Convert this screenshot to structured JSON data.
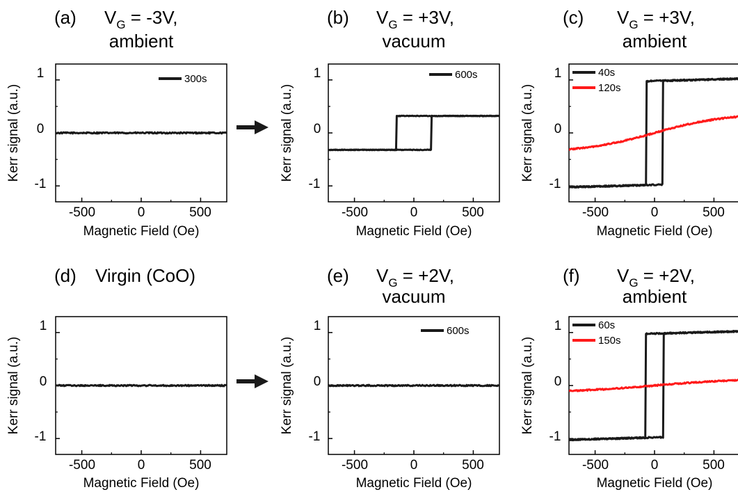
{
  "colors": {
    "black_curve": "#1a1a1a",
    "red_curve": "#ff1a1a",
    "axis": "#000000"
  },
  "arrows": [
    {
      "from": "a",
      "to": "b"
    },
    {
      "from": "d",
      "to": "e"
    }
  ],
  "chart_data": [
    {
      "id": "a",
      "type": "line",
      "title_letter": "(a)",
      "title_main": "V",
      "title_sub": "G",
      "title_rest": " = -3V,",
      "title_line2": "ambient",
      "xlabel": "Magnetic Field (Oe)",
      "ylabel": "Kerr signal (a.u.)",
      "xlim": [
        -720,
        720
      ],
      "ylim": [
        -1.3,
        1.3
      ],
      "xticks": [
        -500,
        0,
        500
      ],
      "yticks": [
        -1,
        0,
        1
      ],
      "xtick_labels": [
        "-500",
        "0",
        "500"
      ],
      "ytick_labels": [
        "-1",
        "0",
        "1"
      ],
      "legend": [
        {
          "label": "300s",
          "color": "#1a1a1a"
        }
      ],
      "series": [
        {
          "name": "300s",
          "color": "#1a1a1a",
          "kind": "flat",
          "level": 0.0,
          "noise": 0.012
        }
      ]
    },
    {
      "id": "b",
      "type": "line",
      "title_letter": "(b)",
      "title_main": "V",
      "title_sub": "G",
      "title_rest": " = +3V,",
      "title_line2": "vacuum",
      "xlabel": "Magnetic Field (Oe)",
      "ylabel": "Kerr signal (a.u.)",
      "xlim": [
        -720,
        720
      ],
      "ylim": [
        -1.3,
        1.3
      ],
      "xticks": [
        -500,
        0,
        500
      ],
      "yticks": [
        -1,
        0,
        1
      ],
      "xtick_labels": [
        "-500",
        "0",
        "500"
      ],
      "ytick_labels": [
        "-1",
        "0",
        "1"
      ],
      "legend": [
        {
          "label": "600s",
          "color": "#1a1a1a"
        }
      ],
      "series": [
        {
          "name": "600s",
          "color": "#1a1a1a",
          "kind": "loop",
          "sat": 0.32,
          "hc": 150,
          "slope": 0.0,
          "noise": 0.006
        }
      ]
    },
    {
      "id": "c",
      "type": "line",
      "title_letter": "(c)",
      "title_main": "V",
      "title_sub": "G",
      "title_rest": " = +3V,",
      "title_line2": "ambient",
      "xlabel": "Magnetic Field (Oe)",
      "ylabel": "Kerr signal (a.u.)",
      "xlim": [
        -720,
        720
      ],
      "ylim": [
        -1.3,
        1.3
      ],
      "xticks": [
        -500,
        0,
        500
      ],
      "yticks": [
        -1,
        0,
        1
      ],
      "xtick_labels": [
        "-500",
        "0",
        "500"
      ],
      "ytick_labels": [
        "-1",
        "0",
        "1"
      ],
      "legend": [
        {
          "label": "40s",
          "color": "#1a1a1a"
        },
        {
          "label": "120s",
          "color": "#ff1a1a"
        }
      ],
      "series": [
        {
          "name": "40s",
          "color": "#1a1a1a",
          "kind": "loop",
          "sat": 0.98,
          "hc": 70,
          "slope": 6e-05,
          "noise": 0.012
        },
        {
          "name": "120s",
          "color": "#ff1a1a",
          "kind": "tanh",
          "amp": 0.37,
          "scale": 600,
          "noise": 0.012
        }
      ]
    },
    {
      "id": "d",
      "type": "line",
      "title_letter": "(d)",
      "title_main": "Virgin (CoO)",
      "title_sub": "",
      "title_rest": "",
      "title_line2": "",
      "xlabel": "Magnetic Field (Oe)",
      "ylabel": "Kerr signal (a.u.)",
      "xlim": [
        -720,
        720
      ],
      "ylim": [
        -1.3,
        1.3
      ],
      "xticks": [
        -500,
        0,
        500
      ],
      "yticks": [
        -1,
        0,
        1
      ],
      "xtick_labels": [
        "-500",
        "0",
        "500"
      ],
      "ytick_labels": [
        "-1",
        "0",
        "1"
      ],
      "legend": [],
      "series": [
        {
          "name": "",
          "color": "#1a1a1a",
          "kind": "flat",
          "level": 0.0,
          "noise": 0.012
        }
      ]
    },
    {
      "id": "e",
      "type": "line",
      "title_letter": "(e)",
      "title_main": "V",
      "title_sub": "G",
      "title_rest": " = +2V,",
      "title_line2": "vacuum",
      "xlabel": "Magnetic Field (Oe)",
      "ylabel": "Kerr signal (a.u.)",
      "xlim": [
        -720,
        720
      ],
      "ylim": [
        -1.3,
        1.3
      ],
      "xticks": [
        -500,
        0,
        500
      ],
      "yticks": [
        -1,
        0,
        1
      ],
      "xtick_labels": [
        "-500",
        "0",
        "500"
      ],
      "ytick_labels": [
        "-1",
        "0",
        "1"
      ],
      "legend": [
        {
          "label": "600s",
          "color": "#1a1a1a"
        }
      ],
      "series": [
        {
          "name": "600s",
          "color": "#1a1a1a",
          "kind": "flat",
          "level": 0.0,
          "noise": 0.012
        }
      ]
    },
    {
      "id": "f",
      "type": "line",
      "title_letter": "(f)",
      "title_main": "V",
      "title_sub": "G",
      "title_rest": " = +2V,",
      "title_line2": "ambient",
      "xlabel": "Magnetic Field (Oe)",
      "ylabel": "Kerr signal (a.u.)",
      "xlim": [
        -720,
        720
      ],
      "ylim": [
        -1.3,
        1.3
      ],
      "xticks": [
        -500,
        0,
        500
      ],
      "yticks": [
        -1,
        0,
        1
      ],
      "xtick_labels": [
        "-500",
        "0",
        "500"
      ],
      "ytick_labels": [
        "-1",
        "0",
        "1"
      ],
      "legend": [
        {
          "label": "60s",
          "color": "#1a1a1a"
        },
        {
          "label": "150s",
          "color": "#ff1a1a"
        }
      ],
      "series": [
        {
          "name": "60s",
          "color": "#1a1a1a",
          "kind": "loop",
          "sat": 0.98,
          "hc": 75,
          "slope": 6e-05,
          "noise": 0.012
        },
        {
          "name": "150s",
          "color": "#ff1a1a",
          "kind": "tanh",
          "amp": 0.13,
          "scale": 700,
          "noise": 0.012
        }
      ]
    }
  ]
}
